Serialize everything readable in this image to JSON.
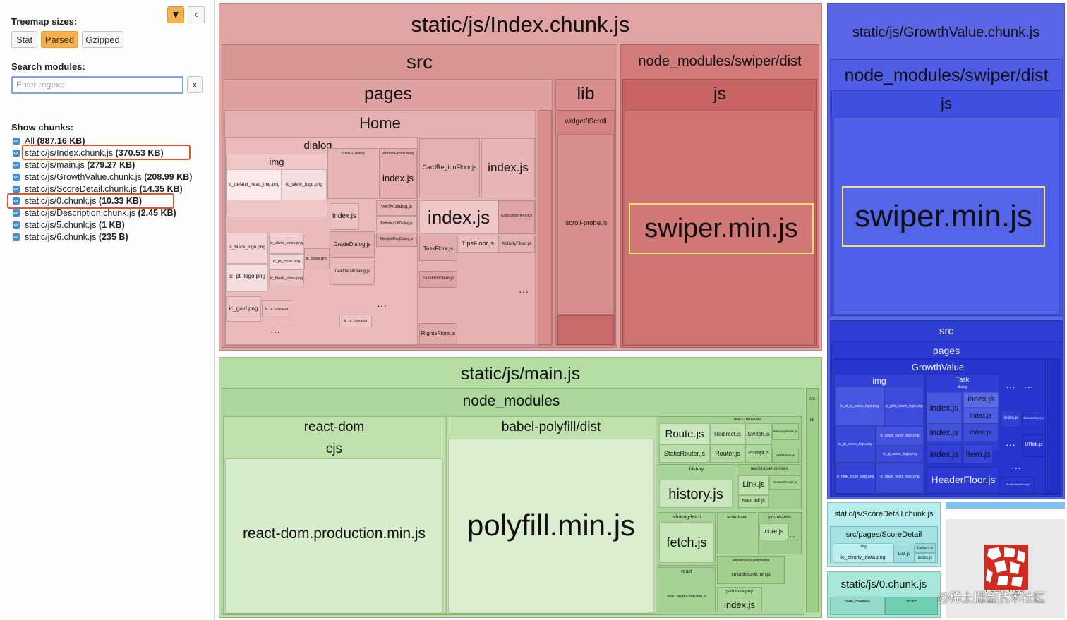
{
  "sidebar": {
    "pin_icon": "pin-icon",
    "collapse_icon": "chevron-left-icon",
    "collapse_glyph": "‹",
    "sizes_label": "Treemap sizes:",
    "size_buttons": [
      "Stat",
      "Parsed",
      "Gzipped"
    ],
    "active_size": "Parsed",
    "search_label": "Search modules:",
    "search_placeholder": "Enter regexp",
    "clear_label": "x",
    "chunks_label": "Show chunks:",
    "chunks": [
      {
        "name": "All",
        "size": "(887.16 KB)"
      },
      {
        "name": "static/js/Index.chunk.js",
        "size": "(370.53 KB)"
      },
      {
        "name": "static/js/main.js",
        "size": "(279.27 KB)"
      },
      {
        "name": "static/js/GrowthValue.chunk.js",
        "size": "(208.99 KB)"
      },
      {
        "name": "static/js/ScoreDetail.chunk.js",
        "size": "(14.35 KB)"
      },
      {
        "name": "static/js/0.chunk.js",
        "size": "(10.33 KB)"
      },
      {
        "name": "static/js/Description.chunk.js",
        "size": "(2.45 KB)"
      },
      {
        "name": "static/js/5.chunk.js",
        "size": "(1 KB)"
      },
      {
        "name": "static/js/6.chunk.js",
        "size": "(235 B)"
      }
    ]
  },
  "index_chunk": {
    "title": "static/js/Index.chunk.js",
    "src": "src",
    "pages": "pages",
    "home": "Home",
    "dialog": "dialog",
    "img": "img",
    "lib": "lib",
    "widget": "widget/iScroll",
    "iscroll": "iscroll-probe.js",
    "swiper_dir": "node_modules/swiper/dist",
    "js": "js",
    "swiper_min": "swiper.min.js",
    "home_files": {
      "card_region": "CardRegionFloor.js",
      "index_big": "index.js",
      "index_mid": "index.js",
      "index_dialog": "index.js",
      "index_small": "index.js",
      "tips_floor": "TipsFloor.js",
      "activity_floor": "ActivityFloor.js",
      "task_floor": "TaskFloor.js",
      "task_floor_item": "TaskFloorItem.js",
      "rights_floor": "RightsFloor.js",
      "verify_dialog": "VerifyDialog.js",
      "grade_dialog": "GradeDialog.js",
      "task_detail_dialog": "TaskDetailDialog.js",
      "birthday_gift": "BirthdayGiftDialog.js",
      "member_day": "MemberDayDialog.js",
      "gold_convert": "GoldConvertFloor.js",
      "draw_gc": "DrawGCDialog",
      "member_expire": "MemberExpireDialog",
      "img_default_head": "ic_default_head_img.png",
      "img_silver_logo": "ic_silver_logo.png",
      "img_black_logo": "ic_black_logo.png",
      "img_pt_logo": "ic_pt_logo.png",
      "img_gold": "ic_gold.png",
      "img_silver_close": "ic_silver_close.png",
      "img_pt_close": "ic_pt_close.png",
      "img_black_close": "ic_black_close.png",
      "img_close": "ic_close.png",
      "img_pt_logo_small": "ic_pt_logo.png",
      "img_gt_logo": "ic_gt_logo.png"
    }
  },
  "growth_chunk": {
    "title": "static/js/GrowthValue.chunk.js",
    "swiper_dir": "node_modules/swiper/dist",
    "js": "js",
    "swiper_min": "swiper.min.js",
    "src": "src",
    "pages": "pages",
    "growth": "GrowthValue",
    "img": "img",
    "task": "Task",
    "dialog": "dialog",
    "files": {
      "index_a": "index.js",
      "index_b": "index.js",
      "index_c": "index.js",
      "index_d": "index.js",
      "index_e": "index.js",
      "index_f": "index.js",
      "index_g": "index.js",
      "item": "Item.js",
      "header_floor": "HeaderFloor.js",
      "ui_tab": "UITab.js",
      "banner_floor": "BannerFloor.js",
      "float_bottom": "FloatBottomFloor.js",
      "img_pt_ty_score": "ic_pt_ty_score_logo.png",
      "img_gold_score": "ic_gold_score_logo.png",
      "img_pt_score": "ic_pt_score_logo.png",
      "img_silver_score": "ic_silver_score_logo.png",
      "img_gt_score": "ic_gt_score_logo.png",
      "img_new_score": "ic_new_score_logo.png",
      "img_black_score": "ic_black_score_logo.png"
    }
  },
  "main_chunk": {
    "title": "static/js/main.js",
    "node_modules": "node_modules",
    "react_dom": "react-dom",
    "cjs": "cjs",
    "react_dom_prod": "react-dom.production.min.js",
    "babel_polyfill": "babel-polyfill/dist",
    "polyfill": "polyfill.min.js",
    "src": "src",
    "lib": "lib",
    "files": {
      "react_router": "react-router/es",
      "route": "Route.js",
      "redirect": "Redirect.js",
      "switch": "Switch.js",
      "memory_router": "MemoryRouter.js",
      "static_router": "StaticRouter.js",
      "router": "Router.js",
      "prompt": "Prompt.js",
      "with_router": "withRouter.js",
      "history_dir": "history",
      "history": "history.js",
      "react_router_dom": "react-router-dom/es",
      "link": "Link.js",
      "navlink": "NavLink.js",
      "browser_router": "BrowserRouter.js",
      "whatwg": "whatwg-fetch",
      "fetch": "fetch.js",
      "scheduler": "scheduler",
      "promise": "promise/lib",
      "core": "core.js",
      "smoothscroll_dist": "smoothscroll-polyfill/dist",
      "smoothscroll": "smoothscroll.min.js",
      "react": "react",
      "react_prod": "react.production.min.js",
      "path_to_regexp": "path-to-regexp",
      "index": "index.js"
    }
  },
  "score_chunk": {
    "title": "static/js/ScoreDetail.chunk.js",
    "path": "src/pages/ScoreDetail",
    "img": "img",
    "empty": "ic_empty_data.png",
    "list": "List.js",
    "list_item": "ListItem.js",
    "index": "index.js"
  },
  "zero_chunk": {
    "title": "static/js/0.chunk.js",
    "node_modules": "node_modules",
    "src_lib": "src/lib"
  },
  "watermark": {
    "logo_text": "FoamTree",
    "site_text": "@稀土掘金技术社区"
  },
  "colors": {
    "index_bg": "#e2a5a5",
    "main_bg": "#b5dca2",
    "growth_bg": "#5a66e6",
    "swiper_highlight": "#f5e069"
  }
}
